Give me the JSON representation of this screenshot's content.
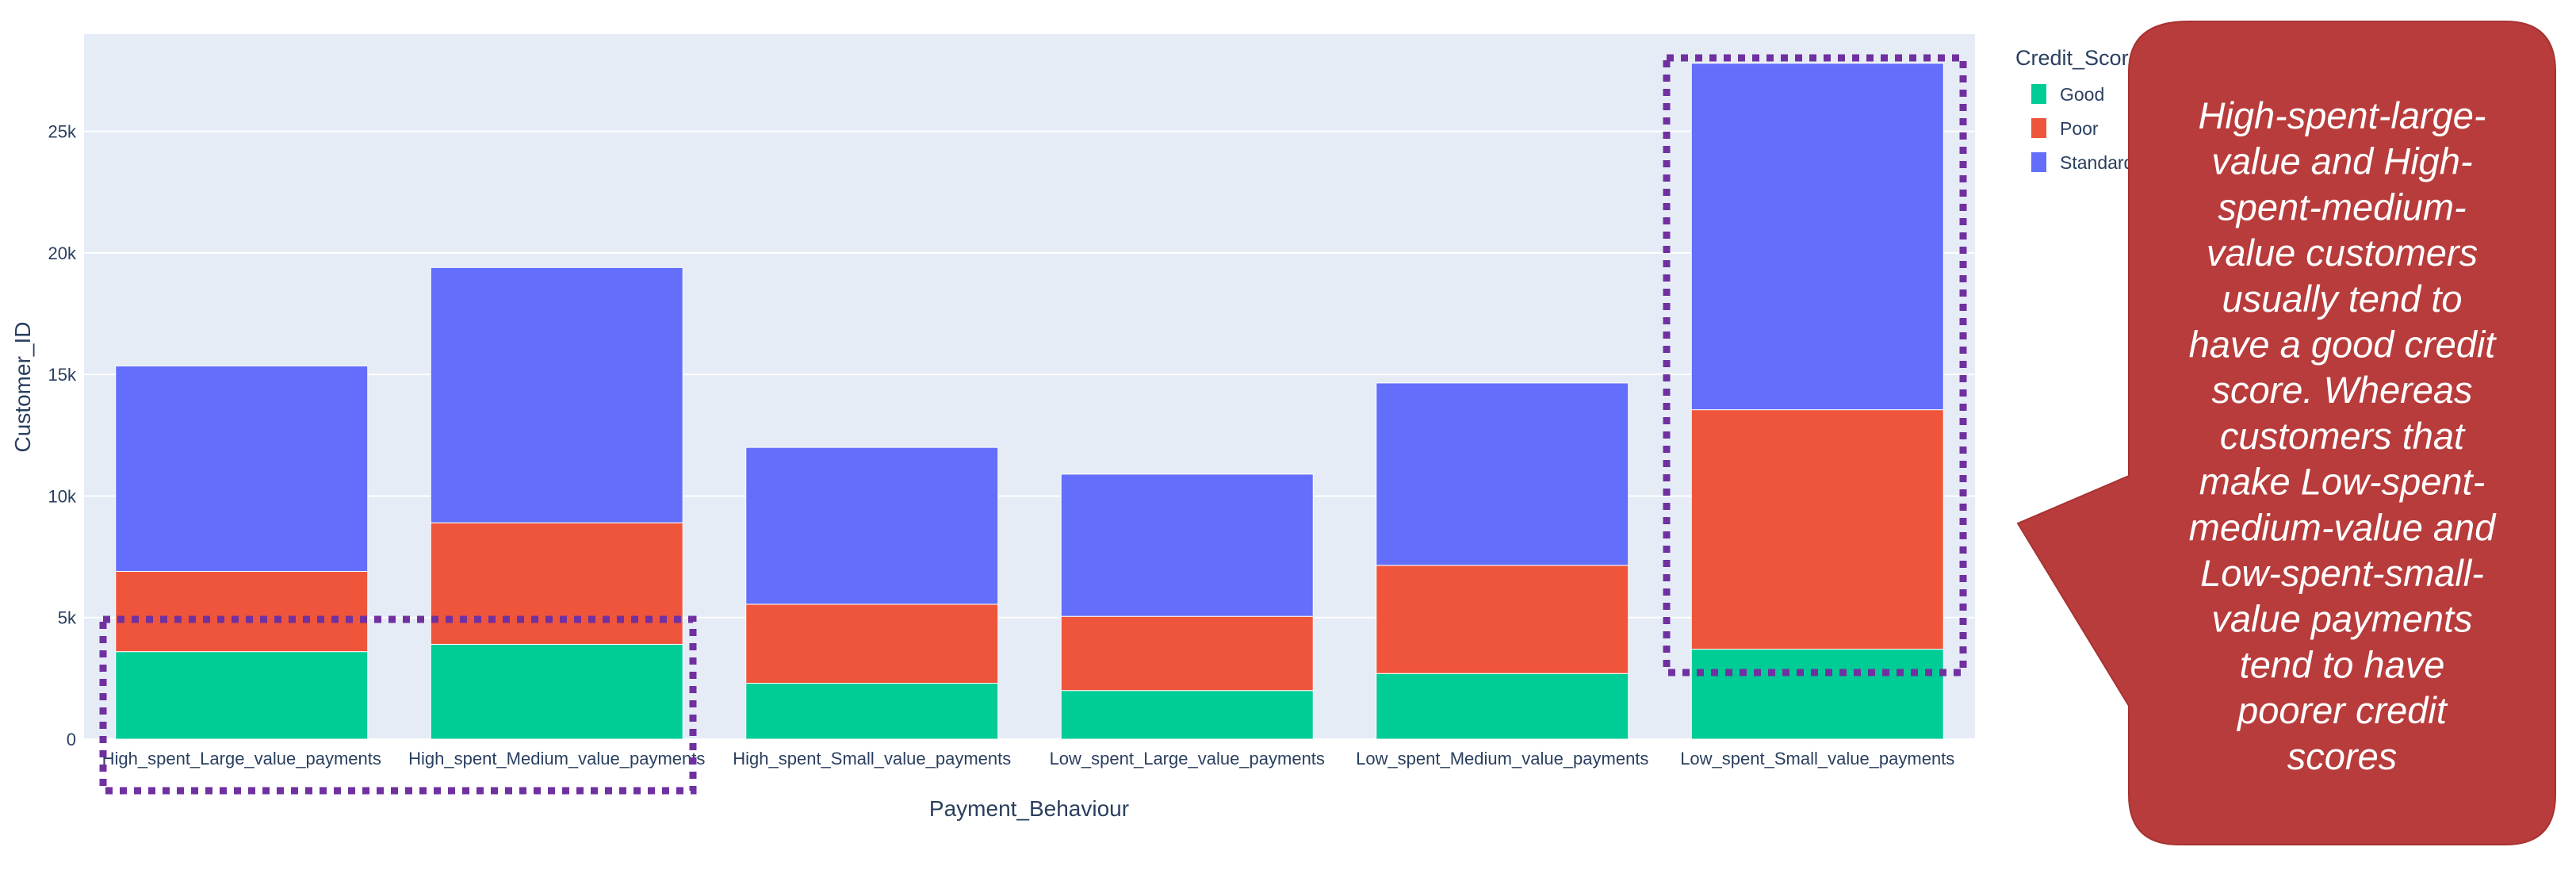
{
  "chart_data": {
    "type": "bar",
    "stacked": true,
    "categories": [
      "High_spent_Large_value_payments",
      "High_spent_Medium_value_payments",
      "High_spent_Small_value_payments",
      "Low_spent_Large_value_payments",
      "Low_spent_Medium_value_payments",
      "Low_spent_Small_value_payments"
    ],
    "series": [
      {
        "name": "Good",
        "color": "#00cc96",
        "values": [
          3600,
          3900,
          2300,
          2000,
          2700,
          3700
        ]
      },
      {
        "name": "Poor",
        "color": "#ef553b",
        "values": [
          3300,
          5000,
          3250,
          3050,
          4450,
          9850
        ]
      },
      {
        "name": "Standard",
        "color": "#636efa",
        "values": [
          8450,
          10500,
          6450,
          5850,
          7500,
          14250
        ]
      }
    ],
    "xlabel": "Payment_Behaviour",
    "ylabel": "Customer_ID",
    "ylim": [
      0,
      29000
    ],
    "yticks": [
      0,
      5000,
      10000,
      15000,
      20000,
      25000
    ],
    "ytick_labels": [
      "0",
      "5k",
      "10k",
      "15k",
      "20k",
      "25k"
    ],
    "grid": true,
    "legend": {
      "title": "Credit_Score",
      "placement": "top-right",
      "entries": [
        "Good",
        "Poor",
        "Standard"
      ]
    }
  },
  "colors": {
    "plot_background": "#e5ecf6",
    "gridline": "#ffffff",
    "highlight_box": "#7030a0",
    "callout_fill": "#b83c3c"
  },
  "highlights": [
    {
      "name": "highlight-high-spent-good",
      "marks": "Good bars of High_spent_Large_value_payments and High_spent_Medium_value_payments"
    },
    {
      "name": "highlight-low-spent-small",
      "marks": "Low_spent_Small_value_payments bar"
    }
  ],
  "callout": {
    "lines": [
      "High-spent-large-",
      "value and High-",
      "spent-medium-",
      "value customers",
      "usually tend to",
      "have a good credit",
      "score. Whereas",
      "customers that",
      "make Low-spent-",
      "medium-value and",
      "Low-spent-small-",
      "value payments",
      "tend to have",
      "poorer credit",
      "scores"
    ]
  }
}
